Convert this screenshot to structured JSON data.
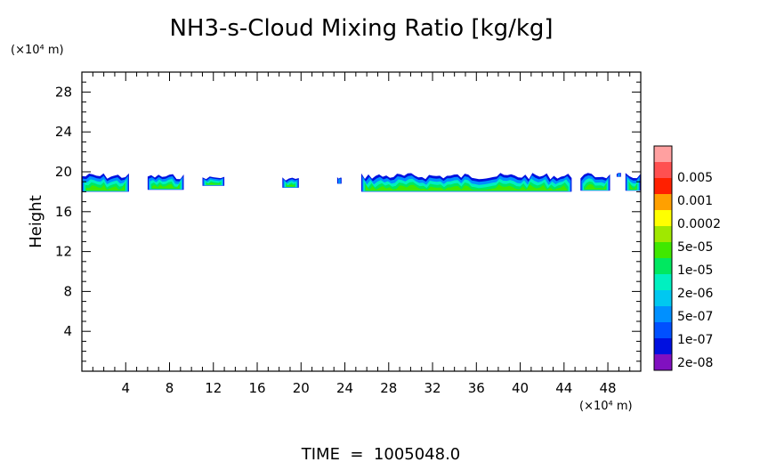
{
  "chart_data": {
    "type": "heatmap",
    "title": "NH3-s-Cloud Mixing Ratio [kg/kg]",
    "ylabel": "Height",
    "y_unit": "(×10⁴ m)",
    "x_unit": "(×10⁴ m)",
    "footer": "TIME  =  1005048.0",
    "xlim": [
      0,
      51
    ],
    "ylim": [
      0,
      30
    ],
    "x_ticks": [
      4,
      8,
      12,
      16,
      20,
      24,
      28,
      32,
      36,
      40,
      44,
      48
    ],
    "y_ticks": [
      4,
      8,
      12,
      16,
      20,
      24,
      28
    ],
    "colorbar": {
      "labels": [
        "0.005",
        "0.001",
        "0.0002",
        "5e-05",
        "1e-05",
        "2e-06",
        "5e-07",
        "1e-07",
        "2e-08"
      ],
      "colors": [
        "#ffa0a0",
        "#ff5050",
        "#ff2000",
        "#ffa000",
        "#ffff00",
        "#a0e800",
        "#40e800",
        "#00e860",
        "#00f0c0",
        "#00c8f0",
        "#0090ff",
        "#0050ff",
        "#0010e0",
        "#8010c0"
      ]
    },
    "cloud_regions": [
      {
        "x": [
          0,
          4.3
        ],
        "z_bottom": 18.0,
        "z_top": 19.9
      },
      {
        "x": [
          6.0,
          9.3
        ],
        "z_bottom": 18.2,
        "z_top": 19.8
      },
      {
        "x": [
          11.0,
          13.0
        ],
        "z_bottom": 18.6,
        "z_top": 19.6
      },
      {
        "x": [
          18.3,
          19.8
        ],
        "z_bottom": 18.4,
        "z_top": 19.5
      },
      {
        "x": [
          23.3,
          23.7
        ],
        "z_bottom": 18.8,
        "z_top": 19.5
      },
      {
        "x": [
          25.5,
          44.7
        ],
        "z_bottom": 18.0,
        "z_top": 19.9
      },
      {
        "x": [
          45.5,
          48.2
        ],
        "z_bottom": 18.1,
        "z_top": 19.9
      },
      {
        "x": [
          48.8,
          49.2
        ],
        "z_bottom": 19.5,
        "z_top": 19.9
      },
      {
        "x": [
          49.6,
          51.0
        ],
        "z_bottom": 18.1,
        "z_top": 19.9
      }
    ]
  }
}
